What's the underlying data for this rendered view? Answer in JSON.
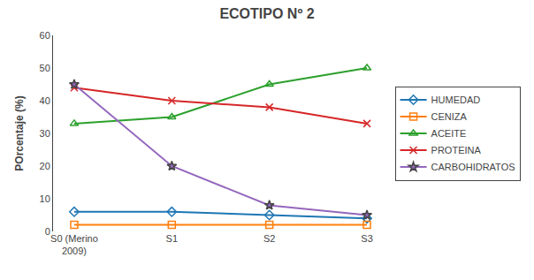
{
  "chart_data": {
    "type": "line",
    "title": "ECOTIPO Nº 2",
    "ylabel": "POrcentaje (%)",
    "categories": [
      "S0 (Merino\n2009)",
      "S1",
      "S2",
      "S3"
    ],
    "series": [
      {
        "name": "HUMEDAD",
        "values": [
          6.0,
          6.0,
          5.0,
          4.0
        ],
        "marker": "diamond-open"
      },
      {
        "name": "CENIZA",
        "values": [
          2.0,
          2.0,
          2.0,
          2.0
        ],
        "marker": "square-open"
      },
      {
        "name": "ACEITE",
        "values": [
          33.0,
          35.0,
          45.0,
          50.0
        ],
        "marker": "triangle-open"
      },
      {
        "name": "PROTEINA",
        "values": [
          44.0,
          40.0,
          38.0,
          33.0
        ],
        "marker": "x"
      },
      {
        "name": "CARBOHIDRATOS",
        "values": [
          45.0,
          20.0,
          8.0,
          5.0
        ],
        "marker": "star"
      }
    ],
    "ylim": [
      0,
      60
    ],
    "yticks": [
      0,
      10,
      20,
      30,
      40,
      50,
      60
    ],
    "grid": false,
    "legend": "right"
  }
}
